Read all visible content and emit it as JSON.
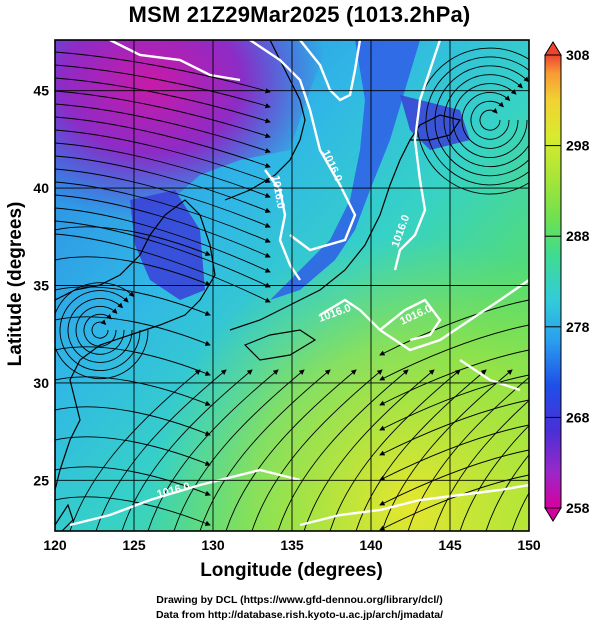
{
  "title": "MSM 21Z29Mar2025 (1013.2hPa)",
  "map": {
    "x_axis": {
      "label": "Longitude (degrees)",
      "ticks": [
        "120",
        "125",
        "130",
        "135",
        "140",
        "145",
        "150"
      ],
      "range": [
        120,
        150
      ]
    },
    "y_axis": {
      "label": "Latitude  (degrees)",
      "ticks": [
        "25",
        "30",
        "35",
        "40",
        "45"
      ],
      "range": [
        22.4,
        47.6
      ]
    },
    "grid": true,
    "field": "temperature shading with wind streamlines and pressure contours",
    "contour_labels": [
      "1016.0",
      "1016.0",
      "1016.0",
      "1016.0",
      "1016.0",
      "1016.0"
    ],
    "colorbar": {
      "ticks": [
        "308",
        "298",
        "288",
        "278",
        "268",
        "258"
      ],
      "range": [
        258,
        308
      ],
      "colors": [
        "#d6009e",
        "#9a28c8",
        "#4a2fd6",
        "#1f4fe8",
        "#2a9fee",
        "#33ccd8",
        "#3fdc90",
        "#6fe050",
        "#a8e638",
        "#d8ea2e",
        "#f2d232",
        "#f79a36",
        "#ee4430"
      ]
    }
  },
  "credits": [
    "Drawing by DCL (https://www.gfd-dennou.org/library/dcl/)",
    "Data from http://database.rish.kyoto-u.ac.jp/arch/jmadata/"
  ]
}
